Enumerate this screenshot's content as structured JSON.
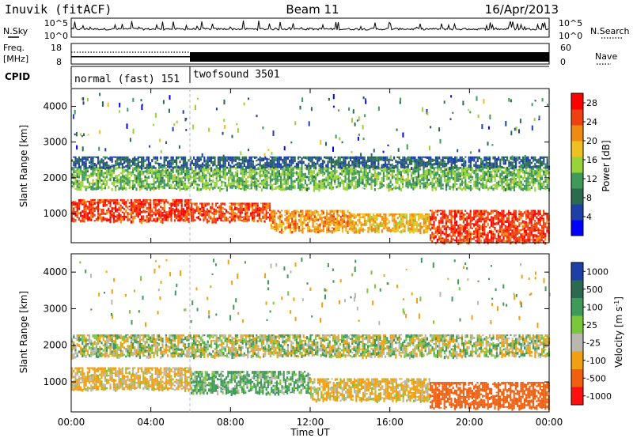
{
  "header": {
    "station": "Inuvik (fitACF)",
    "beam": "Beam 11",
    "date": "16/Apr/2013"
  },
  "panels": {
    "noise_left_label": "N.Sky",
    "noise_right_label": "N.Search",
    "noise_left_ticks": [
      "10^5",
      "10^0"
    ],
    "noise_right_ticks": [
      "10^5",
      "10^0"
    ],
    "freq_label_top": "Freq.",
    "freq_label_unit": "[MHz]",
    "freq_ticks": [
      "18",
      "8"
    ],
    "nave_label": "Nave",
    "nave_ticks": [
      "60",
      "0"
    ],
    "cpid_label": "CPID",
    "cpid_segments": [
      {
        "name": "normal (fast) 151",
        "start_hour": 0,
        "end_hour": 6
      },
      {
        "name": "twofsound 3501",
        "start_hour": 6,
        "end_hour": 24
      }
    ]
  },
  "chart_data": [
    {
      "type": "heatmap",
      "title": "Power",
      "ylabel": "Slant Range [km]",
      "xlabel": "Time UT",
      "xlim": [
        "00:00",
        "24:00"
      ],
      "ylim": [
        180,
        4500
      ],
      "yticks": [
        "1000",
        "2000",
        "3000",
        "4000"
      ],
      "xticks": [
        "00:00",
        "04:00",
        "08:00",
        "12:00",
        "16:00",
        "20:00",
        "00:00"
      ],
      "colorbar": {
        "label": "Power [dB]",
        "ticks": [
          "28",
          "24",
          "20",
          "16",
          "12",
          "8",
          "4"
        ],
        "range": [
          0,
          30
        ],
        "colors": [
          "#0000ff",
          "#1f3fa8",
          "#2a6a4e",
          "#3f9a5a",
          "#9ad23a",
          "#f0c020",
          "#f08a10",
          "#f04010",
          "#ff0000"
        ]
      },
      "bands": [
        {
          "t0": 0,
          "t1": 6,
          "r0": 800,
          "r1": 1400,
          "level": 27
        },
        {
          "t0": 6,
          "t1": 10,
          "r0": 800,
          "r1": 1300,
          "level": 26
        },
        {
          "t0": 10,
          "t1": 14,
          "r0": 500,
          "r1": 1100,
          "level": 22
        },
        {
          "t0": 14,
          "t1": 18,
          "r0": 500,
          "r1": 1000,
          "level": 20
        },
        {
          "t0": 18,
          "t1": 24,
          "r0": 200,
          "r1": 1100,
          "level": 27
        },
        {
          "t0": 0,
          "t1": 24,
          "r0": 1700,
          "r1": 2300,
          "level": 13
        },
        {
          "t0": 0,
          "t1": 24,
          "r0": 2300,
          "r1": 2600,
          "level": 6
        }
      ]
    },
    {
      "type": "heatmap",
      "title": "Velocity",
      "ylabel": "Slant Range [km]",
      "xlabel": "Time UT",
      "xlim": [
        "00:00",
        "24:00"
      ],
      "ylim": [
        180,
        4500
      ],
      "yticks": [
        "1000",
        "2000",
        "3000",
        "4000"
      ],
      "xticks": [
        "00:00",
        "04:00",
        "08:00",
        "12:00",
        "16:00",
        "20:00",
        "00:00"
      ],
      "colorbar": {
        "label": "Velocity [m s^-1]",
        "ticks": [
          "1000",
          "500",
          "100",
          "25",
          "-25",
          "-100",
          "-500",
          "-1000"
        ],
        "colors": [
          "#1f3fa8",
          "#2a6a4e",
          "#3f9a5a",
          "#7ac83a",
          "#b8b8b0",
          "#f0a010",
          "#f06010",
          "#ff1010"
        ]
      },
      "bands": [
        {
          "t0": 0,
          "t1": 6,
          "r0": 800,
          "r1": 1400,
          "level": -100
        },
        {
          "t0": 6,
          "t1": 12,
          "r0": 700,
          "r1": 1300,
          "level": 100
        },
        {
          "t0": 12,
          "t1": 18,
          "r0": 500,
          "r1": 1100,
          "level": -100
        },
        {
          "t0": 18,
          "t1": 24,
          "r0": 300,
          "r1": 1000,
          "level": -500
        },
        {
          "t0": 0,
          "t1": 24,
          "r0": 1700,
          "r1": 2300,
          "level": 0
        }
      ]
    }
  ]
}
